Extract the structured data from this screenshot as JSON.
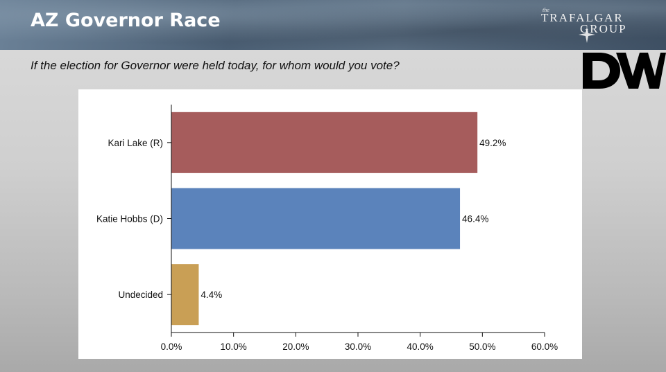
{
  "header": {
    "title": "AZ Governor Race",
    "subtitle": "If the election for Governor were held today, for whom would you vote?"
  },
  "logos": {
    "trafalgar_small": "the",
    "trafalgar_line1": "TRAFALGAR",
    "trafalgar_line2": "GROUP",
    "dw_text": "DW"
  },
  "chart_data": {
    "type": "bar",
    "orientation": "horizontal",
    "categories": [
      "Kari Lake (R)",
      "Katie Hobbs (D)",
      "Undecided"
    ],
    "values": [
      49.2,
      46.4,
      4.4
    ],
    "value_labels": [
      "49.2%",
      "46.4%",
      "4.4%"
    ],
    "colors": [
      "#a65c5c",
      "#5b83bb",
      "#c99f55"
    ],
    "xlim": [
      0,
      60
    ],
    "xticks": [
      0,
      10,
      20,
      30,
      40,
      50,
      60
    ],
    "xtick_labels": [
      "0.0%",
      "10.0%",
      "20.0%",
      "30.0%",
      "40.0%",
      "50.0%",
      "60.0%"
    ],
    "grid": false
  }
}
